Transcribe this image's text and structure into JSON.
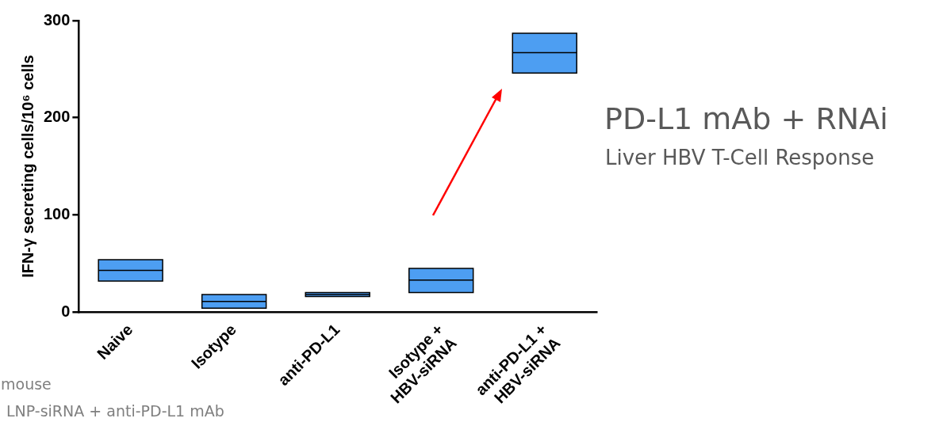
{
  "chart_data": {
    "type": "box",
    "title": "PD-L1 mAb + RNAi",
    "subtitle": "Liver HBV T-Cell Response",
    "ylabel": "IFN-γ secreting cells/10⁶ cells",
    "categories": [
      "Naive",
      "Isotype",
      "anti-PD-L1",
      "Isotype +\nHBV-siRNA",
      "anti-PD-L1 +\nHBV-siRNA"
    ],
    "boxes": [
      {
        "low": 32,
        "q1": 32,
        "median": 43,
        "q3": 54,
        "high": 54
      },
      {
        "low": 4,
        "q1": 4,
        "median": 11,
        "q3": 18,
        "high": 18
      },
      {
        "low": 16,
        "q1": 16,
        "median": 18,
        "q3": 20,
        "high": 20
      },
      {
        "low": 20,
        "q1": 20,
        "median": 33,
        "q3": 45,
        "high": 45
      },
      {
        "low": 246,
        "q1": 246,
        "median": 267,
        "q3": 287,
        "high": 287
      }
    ],
    "color": "#4d9ef2",
    "ylim": [
      0,
      300
    ],
    "yticks": [
      0,
      100,
      200,
      300
    ],
    "grid": false,
    "legend": false,
    "annotations": [
      "mouse",
      "LNP-siRNA + anti-PD-L1 mAb"
    ]
  }
}
